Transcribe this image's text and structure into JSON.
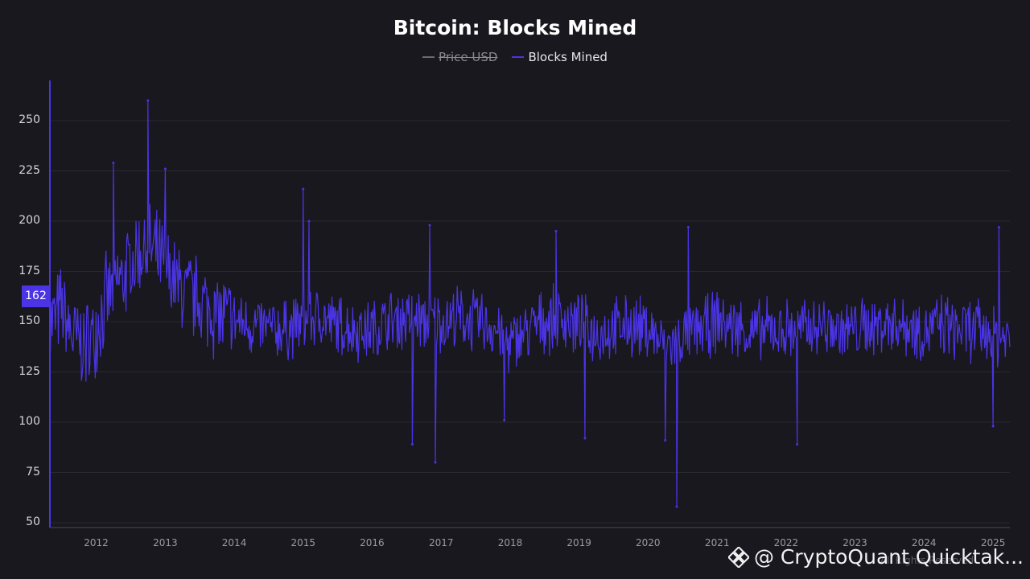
{
  "chart_data": {
    "type": "line",
    "title": "Bitcoin: Blocks Mined",
    "legend": [
      {
        "name": "Price USD",
        "color": "#9a9aa4",
        "active": false
      },
      {
        "name": "Blocks Mined",
        "color": "#4a34e6",
        "active": true
      }
    ],
    "yticks": [
      "250",
      "225",
      "200",
      "175",
      "150",
      "125",
      "100",
      "75",
      "50"
    ],
    "ylim": [
      50,
      270
    ],
    "xticks": [
      "2012",
      "2013",
      "2014",
      "2015",
      "2016",
      "2017",
      "2018",
      "2019",
      "2020",
      "2021",
      "2022",
      "2023",
      "2024",
      "2025"
    ],
    "xlim": [
      "2011-05-01",
      "2025-03-31"
    ],
    "grid": true,
    "current_value": "162",
    "series": [
      {
        "name": "Blocks Mined",
        "color": "#4a34e6",
        "x": [
          "2011-05-01",
          "2011-06-01",
          "2011-07-01",
          "2011-08-01",
          "2011-09-01",
          "2011-10-01",
          "2011-11-01",
          "2011-12-01",
          "2012-01-01",
          "2012-02-01",
          "2012-03-01",
          "2012-04-01",
          "2012-05-01",
          "2012-06-01",
          "2012-07-01",
          "2012-08-01",
          "2012-09-01",
          "2012-10-01",
          "2012-11-01",
          "2012-12-01",
          "2013-01-01",
          "2013-02-01",
          "2013-03-01",
          "2013-04-01",
          "2013-05-01",
          "2013-06-01",
          "2013-07-01",
          "2013-08-01",
          "2013-09-01",
          "2013-10-01",
          "2013-11-01",
          "2013-12-01",
          "2014-01-01",
          "2014-04-01",
          "2014-07-01",
          "2014-10-01",
          "2015-01-01",
          "2015-04-01",
          "2015-07-01",
          "2015-10-01",
          "2016-01-01",
          "2016-04-01",
          "2016-07-01",
          "2016-10-01",
          "2017-01-01",
          "2017-04-01",
          "2017-07-01",
          "2017-10-01",
          "2018-01-01",
          "2018-04-01",
          "2018-07-01",
          "2018-10-01",
          "2019-01-01",
          "2019-04-01",
          "2019-07-01",
          "2019-10-01",
          "2020-01-01",
          "2020-04-01",
          "2020-07-01",
          "2020-10-01",
          "2021-01-01",
          "2021-04-01",
          "2021-07-01",
          "2021-10-01",
          "2022-01-01",
          "2022-04-01",
          "2022-07-01",
          "2022-10-01",
          "2023-01-01",
          "2023-04-01",
          "2023-07-01",
          "2023-10-01",
          "2024-01-01",
          "2024-04-01",
          "2024-07-01",
          "2024-10-01",
          "2025-01-01",
          "2025-03-01"
        ],
        "mean": [
          150,
          152,
          156,
          148,
          142,
          140,
          138,
          140,
          148,
          155,
          162,
          166,
          170,
          174,
          178,
          182,
          186,
          188,
          184,
          180,
          176,
          172,
          168,
          166,
          164,
          162,
          160,
          158,
          156,
          154,
          152,
          152,
          150,
          148,
          146,
          146,
          150,
          152,
          148,
          146,
          146,
          150,
          152,
          150,
          150,
          152,
          150,
          148,
          138,
          146,
          150,
          152,
          148,
          144,
          146,
          148,
          146,
          138,
          142,
          146,
          150,
          148,
          144,
          146,
          146,
          146,
          148,
          146,
          146,
          148,
          150,
          148,
          146,
          148,
          146,
          146,
          144,
          142
        ],
        "notable_peaks": [
          {
            "x": "2012-10-01",
            "y": 260
          },
          {
            "x": "2012-04-01",
            "y": 229
          },
          {
            "x": "2013-01-01",
            "y": 226
          },
          {
            "x": "2015-01-01",
            "y": 216
          },
          {
            "x": "2015-02-01",
            "y": 200
          },
          {
            "x": "2016-11-01",
            "y": 198
          },
          {
            "x": "2018-09-01",
            "y": 195
          },
          {
            "x": "2020-08-01",
            "y": 197
          },
          {
            "x": "2025-02-01",
            "y": 197
          }
        ],
        "notable_troughs": [
          {
            "x": "2016-08-01",
            "y": 89
          },
          {
            "x": "2016-12-01",
            "y": 80
          },
          {
            "x": "2017-12-01",
            "y": 101
          },
          {
            "x": "2019-02-01",
            "y": 92
          },
          {
            "x": "2020-04-01",
            "y": 91
          },
          {
            "x": "2020-06-01",
            "y": 58
          },
          {
            "x": "2022-03-01",
            "y": 89
          },
          {
            "x": "2025-01-01",
            "y": 98
          }
        ]
      }
    ]
  },
  "watermark": {
    "text": "@ CryptoQuant Quicktak...",
    "icon": "binance-diamond-icon"
  },
  "attribution": "All Rights Reserved"
}
